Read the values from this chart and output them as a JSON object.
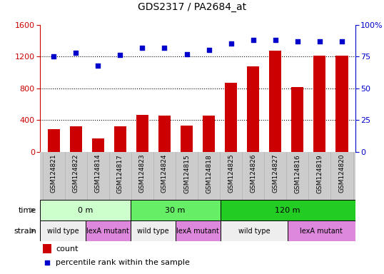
{
  "title": "GDS2317 / PA2684_at",
  "samples": [
    "GSM124821",
    "GSM124822",
    "GSM124814",
    "GSM124817",
    "GSM124823",
    "GSM124824",
    "GSM124815",
    "GSM124818",
    "GSM124825",
    "GSM124826",
    "GSM124827",
    "GSM124816",
    "GSM124819",
    "GSM124820"
  ],
  "counts": [
    290,
    320,
    175,
    320,
    470,
    455,
    330,
    455,
    870,
    1080,
    1270,
    820,
    1210,
    1210
  ],
  "percentile": [
    75,
    78,
    68,
    76,
    82,
    82,
    77,
    80,
    85,
    88,
    88,
    87,
    87,
    87
  ],
  "bar_color": "#cc0000",
  "dot_color": "#0000cc",
  "left_yaxis_color": "#cc0000",
  "right_yaxis_color": "#0000cc",
  "left_ylim": [
    0,
    1600
  ],
  "right_ylim": [
    0,
    100
  ],
  "left_yticks": [
    0,
    400,
    800,
    1200,
    1600
  ],
  "right_yticks": [
    0,
    25,
    50,
    75,
    100
  ],
  "right_yticklabels": [
    "0",
    "25",
    "50",
    "75",
    "100%"
  ],
  "bg_color": "#ffffff",
  "dotted_line_color": "#000000",
  "time_groups": [
    {
      "label": "0 m",
      "start": 0,
      "end": 4,
      "color": "#ccffcc"
    },
    {
      "label": "30 m",
      "start": 4,
      "end": 8,
      "color": "#66ee66"
    },
    {
      "label": "120 m",
      "start": 8,
      "end": 14,
      "color": "#22cc22"
    }
  ],
  "strain_groups": [
    {
      "label": "wild type",
      "start": 0,
      "end": 2,
      "color": "#eeeeee"
    },
    {
      "label": "lexA mutant",
      "start": 2,
      "end": 4,
      "color": "#dd88dd"
    },
    {
      "label": "wild type",
      "start": 4,
      "end": 6,
      "color": "#eeeeee"
    },
    {
      "label": "lexA mutant",
      "start": 6,
      "end": 8,
      "color": "#dd88dd"
    },
    {
      "label": "wild type",
      "start": 8,
      "end": 11,
      "color": "#eeeeee"
    },
    {
      "label": "lexA mutant",
      "start": 11,
      "end": 14,
      "color": "#dd88dd"
    }
  ],
  "bar_width": 0.55,
  "legend_count_color": "#cc0000",
  "legend_pct_color": "#0000cc",
  "tick_bg_color": "#cccccc",
  "grid_line_values": [
    400,
    800,
    1200
  ]
}
